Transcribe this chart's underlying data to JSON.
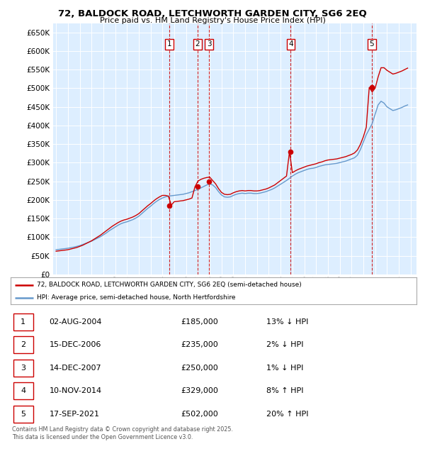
{
  "title_line1": "72, BALDOCK ROAD, LETCHWORTH GARDEN CITY, SG6 2EQ",
  "title_line2": "Price paid vs. HM Land Registry's House Price Index (HPI)",
  "ylim": [
    0,
    675000
  ],
  "yticks": [
    0,
    50000,
    100000,
    150000,
    200000,
    250000,
    300000,
    350000,
    400000,
    450000,
    500000,
    550000,
    600000,
    650000
  ],
  "sale_color": "#cc0000",
  "hpi_color": "#6699cc",
  "plot_bg_color": "#ddeeff",
  "legend_text1": "72, BALDOCK ROAD, LETCHWORTH GARDEN CITY, SG6 2EQ (semi-detached house)",
  "legend_text2": "HPI: Average price, semi-detached house, North Hertfordshire",
  "table_rows": [
    [
      "1",
      "02-AUG-2004",
      "£185,000",
      "13% ↓ HPI"
    ],
    [
      "2",
      "15-DEC-2006",
      "£235,000",
      "2% ↓ HPI"
    ],
    [
      "3",
      "14-DEC-2007",
      "£250,000",
      "1% ↓ HPI"
    ],
    [
      "4",
      "10-NOV-2014",
      "£329,000",
      "8% ↑ HPI"
    ],
    [
      "5",
      "17-SEP-2021",
      "£502,000",
      "20% ↑ HPI"
    ]
  ],
  "footer_text": "Contains HM Land Registry data © Crown copyright and database right 2025.\nThis data is licensed under the Open Government Licence v3.0.",
  "sale_dates_x": [
    2004.58,
    2006.96,
    2007.96,
    2014.86,
    2021.71
  ],
  "sale_prices": [
    185000,
    235000,
    250000,
    329000,
    502000
  ],
  "sale_labels": [
    "1",
    "2",
    "3",
    "4",
    "5"
  ],
  "hpi_data_x": [
    1995.0,
    1995.25,
    1995.5,
    1995.75,
    1996.0,
    1996.25,
    1996.5,
    1996.75,
    1997.0,
    1997.25,
    1997.5,
    1997.75,
    1998.0,
    1998.25,
    1998.5,
    1998.75,
    1999.0,
    1999.25,
    1999.5,
    1999.75,
    2000.0,
    2000.25,
    2000.5,
    2000.75,
    2001.0,
    2001.25,
    2001.5,
    2001.75,
    2002.0,
    2002.25,
    2002.5,
    2002.75,
    2003.0,
    2003.25,
    2003.5,
    2003.75,
    2004.0,
    2004.25,
    2004.5,
    2004.75,
    2005.0,
    2005.25,
    2005.5,
    2005.75,
    2006.0,
    2006.25,
    2006.5,
    2006.75,
    2007.0,
    2007.25,
    2007.5,
    2007.75,
    2008.0,
    2008.25,
    2008.5,
    2008.75,
    2009.0,
    2009.25,
    2009.5,
    2009.75,
    2010.0,
    2010.25,
    2010.5,
    2010.75,
    2011.0,
    2011.25,
    2011.5,
    2011.75,
    2012.0,
    2012.25,
    2012.5,
    2012.75,
    2013.0,
    2013.25,
    2013.5,
    2013.75,
    2014.0,
    2014.25,
    2014.5,
    2014.75,
    2015.0,
    2015.25,
    2015.5,
    2015.75,
    2016.0,
    2016.25,
    2016.5,
    2016.75,
    2017.0,
    2017.25,
    2017.5,
    2017.75,
    2018.0,
    2018.25,
    2018.5,
    2018.75,
    2019.0,
    2019.25,
    2019.5,
    2019.75,
    2020.0,
    2020.25,
    2020.5,
    2020.75,
    2021.0,
    2021.25,
    2021.5,
    2021.75,
    2022.0,
    2022.25,
    2022.5,
    2022.75,
    2023.0,
    2023.25,
    2023.5,
    2023.75,
    2024.0,
    2024.25,
    2024.5,
    2024.75
  ],
  "hpi_data_y": [
    66000,
    67000,
    68000,
    69000,
    70000,
    71500,
    73000,
    75000,
    77000,
    80000,
    83000,
    86000,
    89000,
    93000,
    97000,
    101000,
    106000,
    111000,
    117000,
    122000,
    127000,
    132000,
    136000,
    139000,
    141000,
    144000,
    147000,
    151000,
    156000,
    163000,
    170000,
    177000,
    183000,
    190000,
    196000,
    201000,
    205000,
    208000,
    210000,
    211000,
    212000,
    213000,
    214000,
    215000,
    217000,
    219000,
    222000,
    225000,
    228000,
    232000,
    236000,
    240000,
    243000,
    240000,
    233000,
    222000,
    213000,
    208000,
    207000,
    208000,
    212000,
    215000,
    217000,
    218000,
    217000,
    218000,
    218000,
    217000,
    217000,
    218000,
    220000,
    222000,
    225000,
    228000,
    232000,
    237000,
    242000,
    247000,
    252000,
    258000,
    264000,
    269000,
    273000,
    276000,
    279000,
    282000,
    284000,
    285000,
    287000,
    290000,
    292000,
    294000,
    295000,
    296000,
    297000,
    298000,
    300000,
    302000,
    304000,
    307000,
    310000,
    313000,
    320000,
    335000,
    355000,
    375000,
    390000,
    405000,
    430000,
    455000,
    465000,
    460000,
    450000,
    445000,
    440000,
    442000,
    445000,
    448000,
    452000,
    455000
  ],
  "price_line_y": [
    62000,
    63000,
    64000,
    65000,
    66000,
    68000,
    70000,
    72000,
    75000,
    78000,
    82000,
    86000,
    90000,
    95000,
    100000,
    105000,
    111000,
    117000,
    123000,
    129000,
    134000,
    139000,
    143000,
    146000,
    148000,
    151000,
    154000,
    158000,
    163000,
    170000,
    177000,
    184000,
    190000,
    197000,
    203000,
    208000,
    212000,
    212000,
    210000,
    186000,
    195000,
    196000,
    197000,
    198000,
    200000,
    202000,
    205000,
    235000,
    250000,
    255000,
    258000,
    260000,
    261000,
    252000,
    243000,
    230000,
    220000,
    215000,
    214000,
    215000,
    219000,
    222000,
    224000,
    225000,
    224000,
    225000,
    225000,
    224000,
    224000,
    225000,
    227000,
    229000,
    232000,
    236000,
    240000,
    246000,
    252000,
    258000,
    264000,
    329000,
    273000,
    278000,
    282000,
    285000,
    288000,
    291000,
    293000,
    295000,
    297000,
    300000,
    302000,
    305000,
    307000,
    308000,
    309000,
    310000,
    312000,
    314000,
    316000,
    319000,
    322000,
    326000,
    334000,
    349000,
    369000,
    395000,
    502000,
    490000,
    500000,
    530000,
    555000,
    555000,
    548000,
    543000,
    538000,
    540000,
    543000,
    546000,
    550000,
    554000
  ]
}
